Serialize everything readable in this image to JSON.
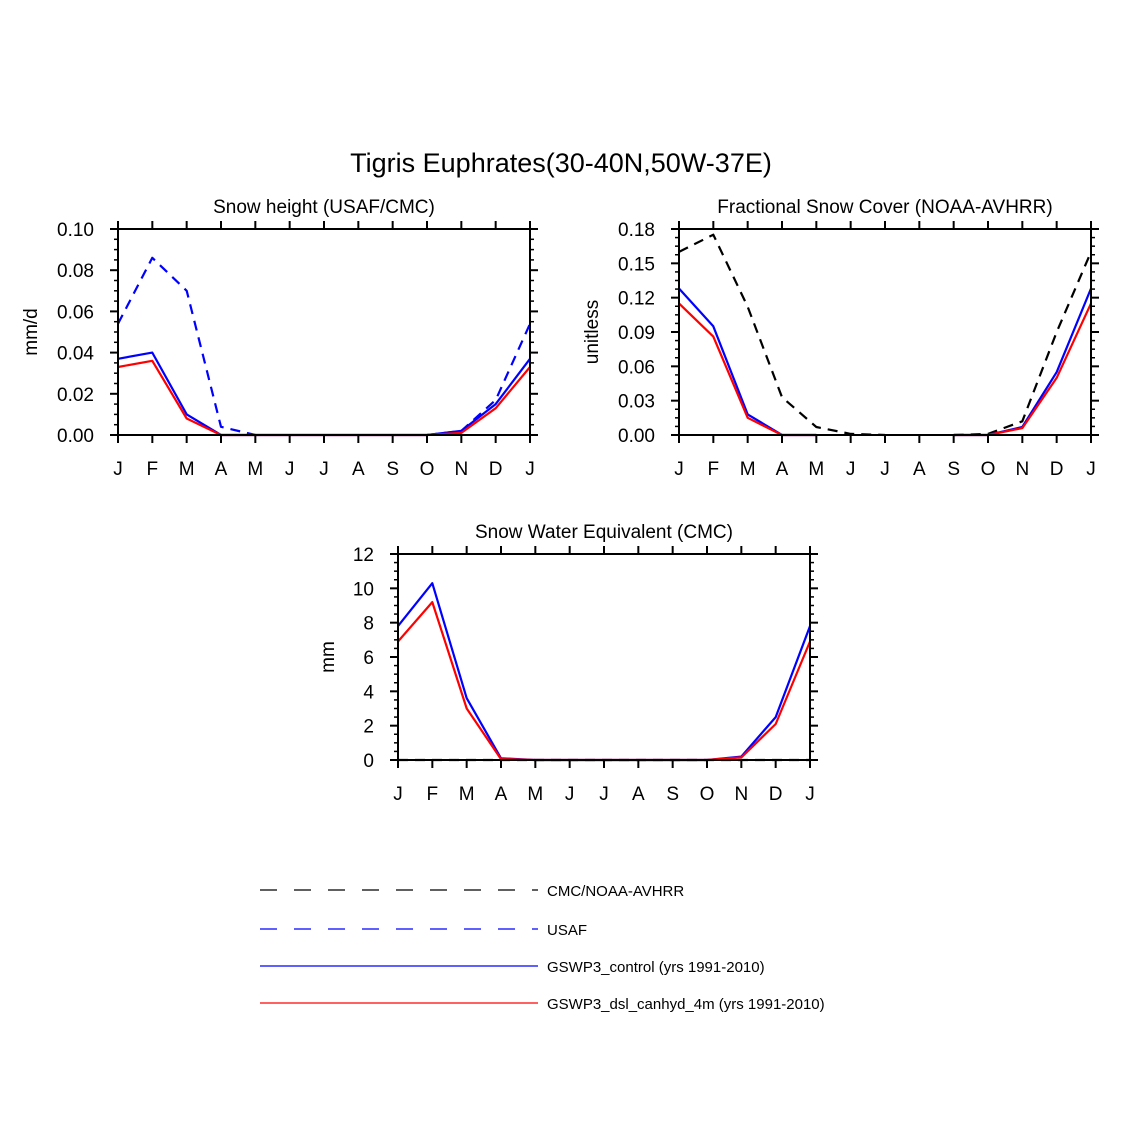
{
  "figure": {
    "title": "Tigris Euphrates(30-40N,50W-37E)"
  },
  "chart_data": [
    {
      "type": "line",
      "title": "Snow height (USAF/CMC)",
      "xlabel": "",
      "ylabel": "mm/d",
      "categories": [
        "J",
        "F",
        "M",
        "A",
        "M",
        "J",
        "J",
        "A",
        "S",
        "O",
        "N",
        "D",
        "J"
      ],
      "ylim": [
        0,
        0.1
      ],
      "yticks": [
        0.0,
        0.02,
        0.04,
        0.06,
        0.08,
        0.1
      ],
      "ytick_labels": [
        "0.00",
        "0.02",
        "0.04",
        "0.06",
        "0.08",
        "0.10"
      ],
      "grid": false,
      "series": [
        {
          "name": "USAF",
          "color": "#0000ff",
          "dash": "dashed",
          "values": [
            0.054,
            0.086,
            0.07,
            0.004,
            0.0,
            null,
            null,
            null,
            null,
            0.0,
            0.002,
            0.017,
            0.054
          ]
        },
        {
          "name": "GSWP3_control (yrs 1991-2010)",
          "color": "#0000ff",
          "dash": "solid",
          "values": [
            0.037,
            0.04,
            0.01,
            0.0,
            0.0,
            0.0,
            0.0,
            0.0,
            0.0,
            0.0,
            0.002,
            0.015,
            0.037
          ]
        },
        {
          "name": "GSWP3_dsl_canhyd_4m (yrs 1991-2010)",
          "color": "#ff0000",
          "dash": "solid",
          "values": [
            0.033,
            0.036,
            0.008,
            0.0,
            0.0,
            0.0,
            0.0,
            0.0,
            0.0,
            0.0,
            0.001,
            0.013,
            0.033
          ]
        }
      ]
    },
    {
      "type": "line",
      "title": "Fractional Snow Cover (NOAA-AVHRR)",
      "xlabel": "",
      "ylabel": "unitless",
      "categories": [
        "J",
        "F",
        "M",
        "A",
        "M",
        "J",
        "J",
        "A",
        "S",
        "O",
        "N",
        "D",
        "J"
      ],
      "ylim": [
        0,
        0.18
      ],
      "yticks": [
        0.0,
        0.03,
        0.06,
        0.09,
        0.12,
        0.15,
        0.18
      ],
      "ytick_labels": [
        "0.00",
        "0.03",
        "0.06",
        "0.09",
        "0.12",
        "0.15",
        "0.18"
      ],
      "grid": false,
      "series": [
        {
          "name": "CMC/NOAA-AVHRR",
          "color": "#000000",
          "dash": "dashed",
          "values": [
            0.16,
            0.175,
            0.112,
            0.033,
            0.007,
            0.001,
            0.0,
            null,
            0.0,
            0.001,
            0.012,
            0.09,
            0.16
          ]
        },
        {
          "name": "GSWP3_control (yrs 1991-2010)",
          "color": "#0000ff",
          "dash": "solid",
          "values": [
            0.128,
            0.095,
            0.018,
            0.0,
            0.0,
            null,
            null,
            null,
            0.0,
            0.0,
            0.007,
            0.055,
            0.128
          ]
        },
        {
          "name": "GSWP3_dsl_canhyd_4m (yrs 1991-2010)",
          "color": "#ff0000",
          "dash": "solid",
          "values": [
            0.115,
            0.086,
            0.015,
            0.0,
            0.0,
            null,
            null,
            null,
            0.0,
            0.0,
            0.006,
            0.05,
            0.115
          ]
        }
      ]
    },
    {
      "type": "line",
      "title": "Snow Water Equivalent (CMC)",
      "xlabel": "",
      "ylabel": "mm",
      "categories": [
        "J",
        "F",
        "M",
        "A",
        "M",
        "J",
        "J",
        "A",
        "S",
        "O",
        "N",
        "D",
        "J"
      ],
      "ylim": [
        0,
        12
      ],
      "yticks": [
        0,
        2,
        4,
        6,
        8,
        10,
        12
      ],
      "ytick_labels": [
        "0",
        "2",
        "4",
        "6",
        "8",
        "10",
        "12"
      ],
      "grid": false,
      "series": [
        {
          "name": "CMC/NOAA-AVHRR",
          "color": "#000000",
          "dash": "dashed",
          "values": [
            0,
            0,
            0,
            0,
            0,
            0,
            0,
            0,
            0,
            0,
            0,
            0,
            0
          ]
        },
        {
          "name": "GSWP3_control (yrs 1991-2010)",
          "color": "#0000ff",
          "dash": "solid",
          "values": [
            7.8,
            10.3,
            3.6,
            0.1,
            0.0,
            0.0,
            0.0,
            0.0,
            0.0,
            0.0,
            0.2,
            2.5,
            7.8
          ]
        },
        {
          "name": "GSWP3_dsl_canhyd_4m (yrs 1991-2010)",
          "color": "#ff0000",
          "dash": "solid",
          "values": [
            6.9,
            9.2,
            3.0,
            0.05,
            0.0,
            0.0,
            0.0,
            0.0,
            0.0,
            0.0,
            0.15,
            2.1,
            6.9
          ]
        }
      ]
    }
  ],
  "legend": {
    "placement": "bottom",
    "entries": [
      {
        "label": "CMC/NOAA-AVHRR",
        "color": "#000000",
        "dash": "long-dash"
      },
      {
        "label": "USAF",
        "color": "#0000ff",
        "dash": "long-dash"
      },
      {
        "label": "GSWP3_control (yrs 1991-2010)",
        "color": "#0000ff",
        "dash": "solid"
      },
      {
        "label": "GSWP3_dsl_canhyd_4m (yrs 1991-2010)",
        "color": "#ff0000",
        "dash": "solid"
      }
    ]
  }
}
